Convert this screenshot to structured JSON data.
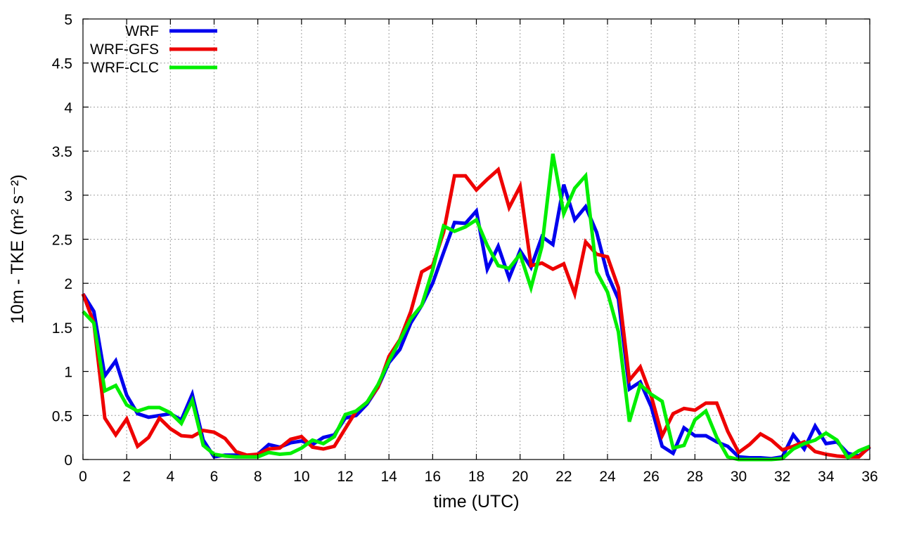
{
  "chart_data": {
    "type": "line",
    "xlabel": "time (UTC)",
    "ylabel": "10m - TKE (m² s⁻²)",
    "xlim": [
      0,
      36
    ],
    "ylim": [
      0,
      5
    ],
    "xticks": [
      0,
      2,
      4,
      6,
      8,
      10,
      12,
      14,
      16,
      18,
      20,
      22,
      24,
      26,
      28,
      30,
      32,
      34,
      36
    ],
    "yticks": [
      0,
      0.5,
      1,
      1.5,
      2,
      2.5,
      3,
      3.5,
      4,
      4.5,
      5
    ],
    "ytick_labels": [
      "0",
      "0.5",
      "1",
      "1.5",
      "2",
      "2.5",
      "3",
      "3.5",
      "4",
      "4.5",
      "5"
    ],
    "grid": true,
    "legend_position": "top-left",
    "x": [
      0,
      0.5,
      1,
      1.5,
      2,
      2.5,
      3,
      3.5,
      4,
      4.5,
      5,
      5.5,
      6,
      6.5,
      7,
      7.5,
      8,
      8.5,
      9,
      9.5,
      10,
      10.5,
      11,
      11.5,
      12,
      12.5,
      13,
      13.5,
      14,
      14.5,
      15,
      15.5,
      16,
      16.5,
      17,
      17.5,
      18,
      18.5,
      19,
      19.5,
      20,
      20.5,
      21,
      21.5,
      22,
      22.5,
      23,
      23.5,
      24,
      24.5,
      25,
      25.5,
      26,
      26.5,
      27,
      27.5,
      28,
      28.5,
      29,
      29.5,
      30,
      30.5,
      31,
      31.5,
      32,
      32.5,
      33,
      33.5,
      34,
      34.5,
      35,
      35.5,
      36
    ],
    "series": [
      {
        "name": "WRF",
        "color": "#0000ee",
        "values": [
          1.88,
          1.68,
          0.95,
          1.12,
          0.73,
          0.52,
          0.48,
          0.5,
          0.52,
          0.45,
          0.74,
          0.22,
          0.03,
          0.05,
          0.05,
          0.04,
          0.06,
          0.17,
          0.14,
          0.19,
          0.21,
          0.17,
          0.25,
          0.28,
          0.47,
          0.5,
          0.63,
          0.82,
          1.1,
          1.25,
          1.55,
          1.75,
          2.0,
          2.35,
          2.69,
          2.68,
          2.82,
          2.16,
          2.42,
          2.06,
          2.37,
          2.18,
          2.53,
          2.44,
          3.12,
          2.72,
          2.87,
          2.58,
          2.1,
          1.82,
          0.8,
          0.88,
          0.6,
          0.15,
          0.07,
          0.36,
          0.27,
          0.27,
          0.2,
          0.15,
          0.03,
          0.02,
          0.02,
          0.01,
          0.03,
          0.28,
          0.12,
          0.38,
          0.18,
          0.2,
          0.07,
          0.04,
          0.14
        ]
      },
      {
        "name": "WRF-GFS",
        "color": "#ee0000",
        "values": [
          1.88,
          1.55,
          0.47,
          0.28,
          0.46,
          0.15,
          0.25,
          0.47,
          0.35,
          0.27,
          0.26,
          0.33,
          0.31,
          0.24,
          0.09,
          0.05,
          0.06,
          0.12,
          0.13,
          0.23,
          0.26,
          0.14,
          0.12,
          0.15,
          0.35,
          0.55,
          0.65,
          0.82,
          1.17,
          1.36,
          1.68,
          2.13,
          2.2,
          2.58,
          3.22,
          3.22,
          3.06,
          3.18,
          3.29,
          2.86,
          3.1,
          2.2,
          2.23,
          2.16,
          2.22,
          1.88,
          2.47,
          2.33,
          2.3,
          1.95,
          0.9,
          1.05,
          0.72,
          0.27,
          0.52,
          0.58,
          0.56,
          0.64,
          0.64,
          0.32,
          0.08,
          0.17,
          0.29,
          0.22,
          0.11,
          0.15,
          0.2,
          0.09,
          0.06,
          0.04,
          0.03,
          0.03,
          0.15
        ]
      },
      {
        "name": "WRF-CLC",
        "color": "#00ee00",
        "values": [
          1.68,
          1.55,
          0.78,
          0.84,
          0.62,
          0.55,
          0.59,
          0.59,
          0.53,
          0.41,
          0.67,
          0.16,
          0.06,
          0.04,
          0.03,
          0.03,
          0.03,
          0.08,
          0.06,
          0.07,
          0.13,
          0.22,
          0.18,
          0.26,
          0.51,
          0.55,
          0.65,
          0.85,
          1.12,
          1.35,
          1.6,
          1.75,
          2.15,
          2.65,
          2.59,
          2.64,
          2.72,
          2.43,
          2.2,
          2.17,
          2.33,
          1.95,
          2.42,
          3.47,
          2.79,
          3.08,
          3.22,
          2.13,
          1.9,
          1.45,
          0.43,
          0.85,
          0.74,
          0.66,
          0.13,
          0.16,
          0.45,
          0.55,
          0.25,
          0.03,
          0.0,
          0.0,
          0.0,
          0.0,
          0.01,
          0.12,
          0.18,
          0.22,
          0.3,
          0.22,
          0.02,
          0.1,
          0.15
        ]
      }
    ]
  }
}
